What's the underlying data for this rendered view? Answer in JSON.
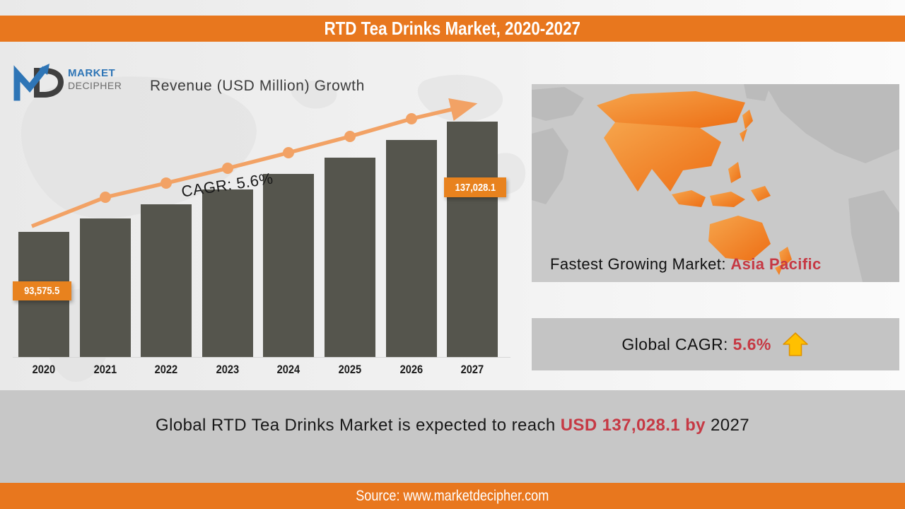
{
  "header": {
    "title": "RTD Tea Drinks Market, 2020-2027"
  },
  "logo": {
    "line1": "MARKET",
    "line2": "DECIPHER",
    "icon": "md-arrow-logo"
  },
  "chart": {
    "subtitle": "Revenue (USD Million) Growth",
    "cagr_annotation": "CAGR: 5.6%",
    "first_bar_label": "93,575.5",
    "last_bar_label": "137,028.1"
  },
  "chart_data": {
    "type": "bar",
    "title": "Revenue (USD Million) Growth",
    "categories": [
      "2020",
      "2021",
      "2022",
      "2023",
      "2024",
      "2025",
      "2026",
      "2027"
    ],
    "series": [
      {
        "name": "Revenue (USD Million)",
        "values": [
          93575.5,
          98815.7,
          104349.4,
          110192.9,
          116363.7,
          122880.1,
          129761.4,
          137028.1
        ]
      }
    ],
    "data_labels": {
      "2020": "93,575.5",
      "2027": "137,028.1"
    },
    "annotations": [
      "CAGR: 5.6%"
    ],
    "trendline": {
      "type": "line-with-arrow",
      "color": "#F2A265"
    },
    "xlabel": "",
    "ylabel": "",
    "grid": false,
    "legend": "none",
    "bar_color": "#55554D"
  },
  "map_panel": {
    "caption_prefix": "Fastest Growing Market: ",
    "caption_highlight": "Asia Pacific",
    "map_icon": "asia-pacific-highlight-map"
  },
  "cagr_panel": {
    "label_prefix": "Global CAGR: ",
    "value": "5.6%",
    "arrow_icon": "gold-up-arrow"
  },
  "bottom_banner": {
    "prefix": "Global RTD Tea Drinks Market is expected to reach ",
    "highlight": "USD 137,028.1  by ",
    "suffix": "2027"
  },
  "footer": {
    "source": "Source: www.marketdecipher.com"
  },
  "colors": {
    "accent_orange": "#E8771E",
    "trend_orange": "#F2A265",
    "callout_orange": "#E8821E",
    "bar_gray": "#55554D",
    "highlight_red": "#C63944",
    "panel_gray": "#c7c7c7",
    "arrow_gold": "#FFC000"
  }
}
